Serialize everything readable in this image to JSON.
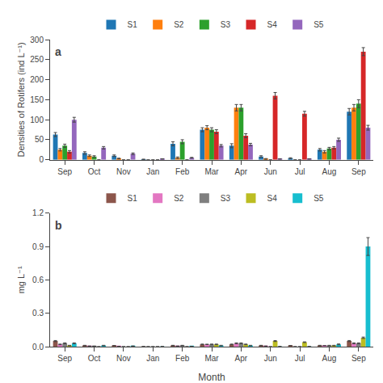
{
  "chart_data": [
    {
      "type": "bar",
      "ylabel": "Densities of Rotifers (ind L⁻¹)",
      "categories": [
        "Sep",
        "Oct",
        "Nov",
        "Jan",
        "Feb",
        "Mar",
        "Apr",
        "Jun",
        "Jul",
        "Aug",
        "Sep"
      ],
      "series": [
        {
          "name": "S1",
          "values": [
            63,
            17,
            10,
            1,
            40,
            75,
            35,
            8,
            4,
            25,
            120
          ],
          "errors": [
            5,
            3,
            2,
            0.5,
            5,
            5,
            5,
            2,
            1,
            3,
            8
          ]
        },
        {
          "name": "S2",
          "values": [
            25,
            10,
            3,
            0,
            5,
            80,
            130,
            2,
            0,
            20,
            130
          ],
          "errors": [
            3,
            2,
            1,
            0,
            2,
            5,
            8,
            1,
            0,
            3,
            8
          ]
        },
        {
          "name": "S3",
          "values": [
            35,
            8,
            0,
            0,
            45,
            75,
            130,
            0,
            0,
            28,
            140
          ],
          "errors": [
            4,
            2,
            0,
            0,
            5,
            5,
            8,
            0,
            0,
            3,
            10
          ]
        },
        {
          "name": "S4",
          "values": [
            20,
            0,
            0,
            0,
            0,
            70,
            60,
            160,
            115,
            30,
            270
          ],
          "errors": [
            3,
            0,
            0,
            0,
            0,
            5,
            5,
            8,
            6,
            3,
            10
          ]
        },
        {
          "name": "S5",
          "values": [
            100,
            30,
            15,
            2,
            5,
            35,
            38,
            2,
            2,
            50,
            80
          ],
          "errors": [
            6,
            3,
            2,
            0.5,
            1,
            3,
            3,
            0.5,
            0.5,
            4,
            6
          ]
        }
      ],
      "ylim": [
        0,
        300
      ],
      "yticks": [
        0,
        50,
        100,
        150,
        200,
        250,
        300
      ],
      "grid": false,
      "legend": "top",
      "annotations": [
        "a"
      ]
    },
    {
      "type": "bar",
      "xlabel": "Month",
      "ylabel": "mg L⁻¹",
      "categories": [
        "Sep",
        "Oct",
        "Nov",
        "Jan",
        "Feb",
        "Mar",
        "Apr",
        "Jun",
        "Jul",
        "Aug",
        "Sep"
      ],
      "series": [
        {
          "name": "S1",
          "values": [
            0.05,
            0.01,
            0.01,
            0.001,
            0.01,
            0.02,
            0.02,
            0.01,
            0.01,
            0.01,
            0.05
          ],
          "errors": [
            0.005,
            0.002,
            0.001,
            0.0,
            0.002,
            0.003,
            0.003,
            0.002,
            0.001,
            0.002,
            0.005
          ]
        },
        {
          "name": "S2",
          "values": [
            0.02,
            0.005,
            0.002,
            0.0,
            0.005,
            0.02,
            0.03,
            0.005,
            0.0,
            0.01,
            0.03
          ],
          "errors": [
            0.003,
            0.001,
            0.001,
            0.0,
            0.001,
            0.002,
            0.004,
            0.001,
            0.0,
            0.001,
            0.004
          ]
        },
        {
          "name": "S3",
          "values": [
            0.03,
            0.004,
            0.0,
            0.0,
            0.01,
            0.02,
            0.03,
            0.0,
            0.0,
            0.01,
            0.03
          ],
          "errors": [
            0.004,
            0.001,
            0.0,
            0.0,
            0.002,
            0.003,
            0.004,
            0.0,
            0.0,
            0.002,
            0.004
          ]
        },
        {
          "name": "S4",
          "values": [
            0.01,
            0.0,
            0.0,
            0.0,
            0.0,
            0.02,
            0.02,
            0.05,
            0.04,
            0.01,
            0.08
          ],
          "errors": [
            0.002,
            0.0,
            0.0,
            0.0,
            0.0,
            0.003,
            0.003,
            0.004,
            0.003,
            0.002,
            0.006
          ]
        },
        {
          "name": "S5",
          "values": [
            0.03,
            0.01,
            0.005,
            0.001,
            0.002,
            0.01,
            0.01,
            0.001,
            0.001,
            0.02,
            0.9
          ],
          "errors": [
            0.004,
            0.002,
            0.001,
            0.0,
            0.001,
            0.002,
            0.002,
            0.001,
            0.001,
            0.004,
            0.08
          ]
        }
      ],
      "ylim": [
        0,
        1.2
      ],
      "yticks": [
        {
          "value": 0.0,
          "label": "0.0"
        },
        0.3,
        0.6,
        0.9,
        1.2
      ],
      "grid": false,
      "legend": "top",
      "annotations": [
        "b"
      ]
    }
  ]
}
